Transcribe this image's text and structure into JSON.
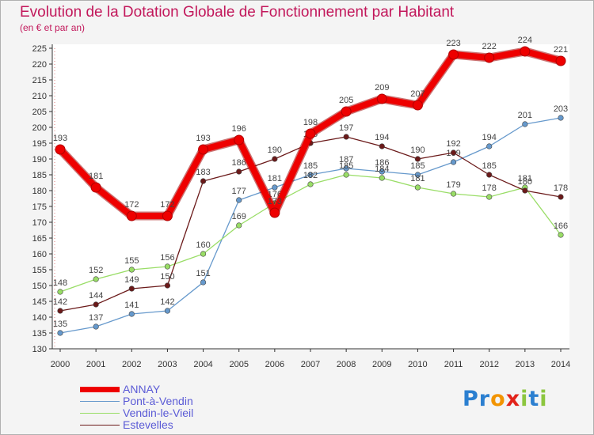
{
  "chart_data": {
    "type": "line",
    "title": "Evolution de la Dotation Globale de Fonctionnement par Habitant",
    "subtitle": "(en € et par an)",
    "x": [
      "2000",
      "2001",
      "2002",
      "2003",
      "2004",
      "2005",
      "2006",
      "2007",
      "2008",
      "2009",
      "2010",
      "2011",
      "2012",
      "2013",
      "2014"
    ],
    "ylim": [
      130,
      225
    ],
    "yticks": [
      130,
      135,
      140,
      145,
      150,
      155,
      160,
      165,
      170,
      175,
      180,
      185,
      190,
      195,
      200,
      205,
      210,
      215,
      220,
      225
    ],
    "grid": false,
    "legend_position": "bottom-left",
    "series": [
      {
        "name": "ANNAY",
        "color": "#ee0000",
        "values": [
          193,
          181,
          172,
          172,
          193,
          196,
          173,
          198,
          205,
          209,
          207,
          223,
          222,
          224,
          221
        ]
      },
      {
        "name": "Pont-à-Vendin",
        "color": "#6699cc",
        "values": [
          135,
          137,
          141,
          142,
          151,
          177,
          181,
          185,
          187,
          186,
          185,
          189,
          194,
          201,
          203
        ]
      },
      {
        "name": "Vendin-le-Vieil",
        "color": "#99dd66",
        "values": [
          148,
          152,
          155,
          156,
          160,
          169,
          176,
          182,
          185,
          184,
          181,
          179,
          178,
          181,
          166
        ]
      },
      {
        "name": "Estevelles",
        "color": "#6b1a1a",
        "values": [
          142,
          144,
          149,
          150,
          183,
          186,
          190,
          195,
          197,
          194,
          190,
          192,
          185,
          180,
          178
        ]
      }
    ]
  },
  "logo": {
    "text": "Proxiti",
    "letters": [
      "P",
      "r",
      "o",
      "x",
      "i",
      "t",
      "i"
    ],
    "colors": [
      "#2b7fd0",
      "#2b7fd0",
      "#f29400",
      "#e2231a",
      "#8cc63f",
      "#2b7fd0",
      "#8cc63f"
    ]
  }
}
